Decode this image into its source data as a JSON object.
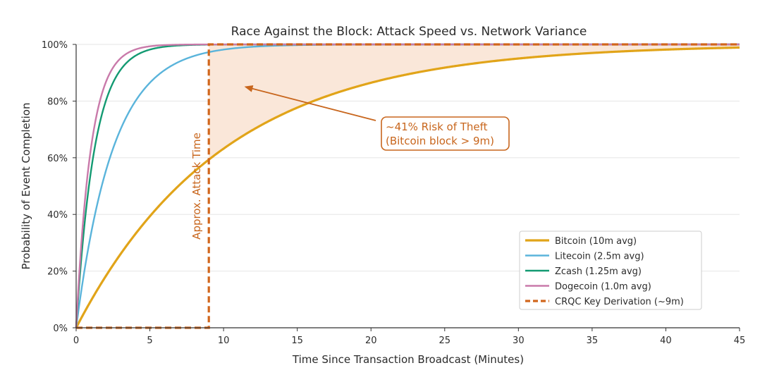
{
  "chart_data": {
    "type": "line",
    "title": "Race Against the Block: Attack Speed vs. Network Variance",
    "xlabel": "Time Since Transaction Broadcast (Minutes)",
    "ylabel": "Probability of Event Completion",
    "xlim": [
      0,
      45
    ],
    "ylim": [
      0,
      1
    ],
    "x_ticks": [
      0,
      5,
      10,
      15,
      20,
      25,
      30,
      35,
      40,
      45
    ],
    "x_tick_labels": [
      "0",
      "5",
      "10",
      "15",
      "20",
      "25",
      "30",
      "35",
      "40",
      "45"
    ],
    "y_ticks": [
      0,
      0.2,
      0.4,
      0.6,
      0.8,
      1.0
    ],
    "y_tick_labels": [
      "0%",
      "20%",
      "40%",
      "60%",
      "80%",
      "100%"
    ],
    "grid": "horizontal",
    "legend_position": "lower-right",
    "series": [
      {
        "name": "Bitcoin (10m avg)",
        "kind": "exponential-cdf",
        "mean_minutes": 10,
        "color": "#e1a419",
        "style": "solid"
      },
      {
        "name": "Litecoin (2.5m avg)",
        "kind": "exponential-cdf",
        "mean_minutes": 2.5,
        "color": "#5ab4db",
        "style": "solid"
      },
      {
        "name": "Zcash (1.25m avg)",
        "kind": "exponential-cdf",
        "mean_minutes": 1.25,
        "color": "#139a72",
        "style": "solid"
      },
      {
        "name": "Dogecoin (1.0m avg)",
        "kind": "exponential-cdf",
        "mean_minutes": 1.0,
        "color": "#c97aaa",
        "style": "solid"
      },
      {
        "name": "CRQC Key Derivation (~9m)",
        "kind": "step",
        "step_at_minutes": 9,
        "color": "#d1661c",
        "style": "dashed"
      }
    ],
    "shaded_region": {
      "from_x": 9,
      "to_x": 45,
      "between": [
        "Bitcoin (10m avg)",
        "CRQC Key Derivation (~9m)"
      ],
      "color": "#fae7d9"
    },
    "annotations": {
      "risk_line1": "~41% Risk of Theft",
      "risk_line2": "(Bitcoin block > 9m)",
      "attack_label": "Approx. Attack Time",
      "arrow_target": {
        "x": 11.5,
        "y": 0.85
      },
      "color": "#c8661d"
    }
  }
}
